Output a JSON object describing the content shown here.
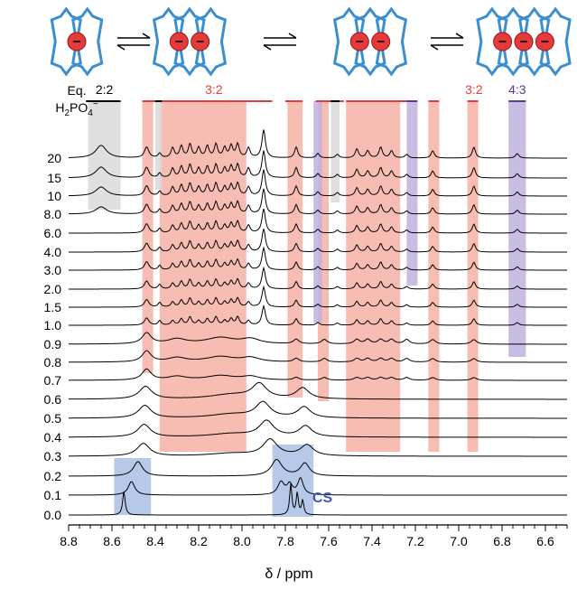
{
  "figure": {
    "eq_header": "Eq.",
    "analyte": "H2PO4−",
    "x_axis_label": "δ / ppm",
    "cs_label": "CS",
    "colors": {
      "red": "#f6b0a4",
      "red_line": "#e83a3a",
      "blue": "#a9bfe4",
      "purple": "#bfb2df",
      "grey": "#d9d9d9",
      "trace": "#000000"
    }
  },
  "chart_data": {
    "type": "line",
    "title": "",
    "xlabel": "δ / ppm",
    "ylabel": "",
    "xlim": [
      8.8,
      6.5
    ],
    "x_ticks": [
      "8.8",
      "8.6",
      "8.4",
      "8.2",
      "8.0",
      "7.8",
      "7.6",
      "7.4",
      "7.2",
      "7.0",
      "6.8",
      "6.6"
    ],
    "equivalents": [
      "0.0",
      "0.1",
      "0.2",
      "0.3",
      "0.4",
      "0.5",
      "0.6",
      "0.7",
      "0.8",
      "0.9",
      "1.0",
      "1.5",
      "2.0",
      "3.0",
      "4.0",
      "6.0",
      "8.0",
      "10",
      "15",
      "20"
    ],
    "species_labels": [
      {
        "text": "2:2",
        "color": "#000000",
        "x": [
          8.71,
          8.56
        ]
      },
      {
        "text": "3:2",
        "color": "#e83a3a",
        "x": [
          8.46,
          7.85
        ]
      },
      {
        "text": "3:2",
        "color": "#e83a3a",
        "x": [
          6.95,
          6.9
        ]
      },
      {
        "text": "4:3",
        "color": "#5b3aa0",
        "x": [
          6.77,
          6.69
        ]
      }
    ],
    "cs_peaks_ppm": [
      8.54,
      7.83,
      7.78,
      7.75,
      7.71
    ],
    "complex_peaks_ppm": [
      8.44,
      8.38,
      8.32,
      8.28,
      8.24,
      8.2,
      8.16,
      8.12,
      8.08,
      8.05,
      8.02,
      7.97,
      7.9,
      7.75,
      7.65,
      7.56,
      7.47,
      7.42,
      7.36,
      7.31,
      7.24,
      7.12,
      6.93,
      6.73
    ]
  }
}
